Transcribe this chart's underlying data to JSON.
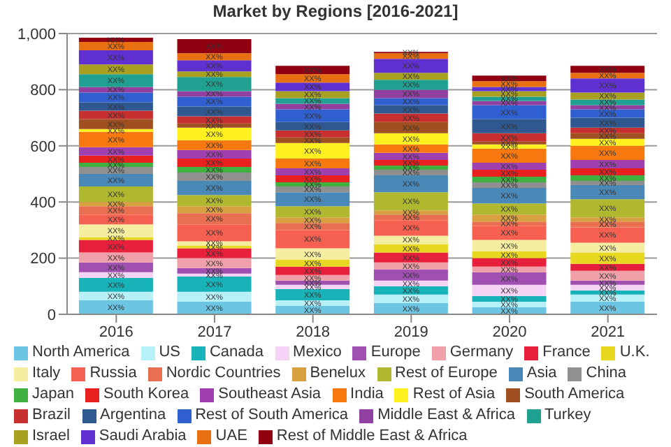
{
  "chart_data": {
    "type": "bar",
    "title": "Market by Regions [2016-2021]",
    "stacked": true,
    "grid": "y",
    "legend": "bottom",
    "data_labels": false,
    "categories": [
      "2016",
      "2017",
      "2018",
      "2019",
      "2020",
      "2021"
    ],
    "ylim": [
      0,
      1000
    ],
    "yticks": [
      0,
      200,
      400,
      600,
      800,
      {
        "value": 1000,
        "label": "1,000"
      }
    ],
    "series": [
      {
        "name": "North America",
        "color": "#6cc5e3",
        "values": [
          50,
          45,
          30,
          40,
          25,
          45
        ],
        "value_labels": [
          "XX%",
          "XX%",
          "XX%",
          "XX%",
          "XX%",
          "XX%"
        ]
      },
      {
        "name": "US",
        "color": "#b8f0f8",
        "values": [
          30,
          35,
          20,
          30,
          20,
          25
        ],
        "value_labels": [
          "XX%",
          "XX%",
          "XX%",
          "XX%",
          "XX%",
          "XX%"
        ]
      },
      {
        "name": "Canada",
        "color": "#17b3b8",
        "values": [
          50,
          55,
          40,
          30,
          20,
          15
        ],
        "value_labels": [
          "XX%",
          "XX%",
          "XX%",
          "XX%",
          "XX%",
          "XX%"
        ]
      },
      {
        "name": "Mexico",
        "color": "#f5d3f5",
        "values": [
          20,
          10,
          15,
          20,
          40,
          20
        ],
        "value_labels": [
          "XX%",
          "XX%",
          "XX%",
          "XX%",
          "XX%",
          "XX%"
        ]
      },
      {
        "name": "Europe",
        "color": "#a050b0",
        "values": [
          35,
          20,
          15,
          40,
          45,
          15
        ],
        "value_labels": [
          "XX%",
          "XX%",
          "XX%",
          "XX%",
          "XX%",
          "XX%"
        ]
      },
      {
        "name": "Germany",
        "color": "#f0a0a8",
        "values": [
          35,
          35,
          20,
          25,
          20,
          35
        ],
        "value_labels": [
          "XX%",
          "XX%",
          "XX%",
          "XX%",
          "XX%",
          "XX%"
        ]
      },
      {
        "name": "France",
        "color": "#e8203c",
        "values": [
          45,
          35,
          30,
          35,
          30,
          25
        ],
        "value_labels": [
          "XX%",
          "XX%",
          "XX%",
          "XX%",
          "XX%",
          "XX%"
        ]
      },
      {
        "name": "U.K.",
        "color": "#e8d820",
        "values": [
          10,
          10,
          25,
          30,
          25,
          40
        ],
        "value_labels": [
          "XX%",
          "XX%",
          "XX%",
          "XX%",
          "XX%",
          "XX%"
        ]
      },
      {
        "name": "Italy",
        "color": "#f5eea0",
        "values": [
          45,
          15,
          40,
          30,
          40,
          35
        ],
        "value_labels": [
          "XX%",
          "XX%",
          "XX%",
          "XX%",
          "XX%",
          "XX%"
        ]
      },
      {
        "name": "Russia",
        "color": "#f56050",
        "values": [
          35,
          60,
          65,
          55,
          50,
          55
        ],
        "value_labels": [
          "XX%",
          "XX%",
          "XX%",
          "XX%",
          "XX%",
          "XX%"
        ]
      },
      {
        "name": "Nordic Countries",
        "color": "#e87050",
        "values": [
          30,
          40,
          25,
          20,
          15,
          20
        ],
        "value_labels": [
          "XX%",
          "XX%",
          "XX%",
          "XX%",
          "XX%",
          "XX%"
        ]
      },
      {
        "name": "Benelux",
        "color": "#d8a040",
        "values": [
          15,
          25,
          20,
          15,
          25,
          15
        ],
        "value_labels": [
          "XX%",
          "XX%",
          "XX%",
          "XX%",
          "XX%",
          "XX%"
        ]
      },
      {
        "name": "Rest of Europe",
        "color": "#b0b830",
        "values": [
          55,
          40,
          40,
          65,
          40,
          65
        ],
        "value_labels": [
          "XX%",
          "XX%",
          "XX%",
          "XX%",
          "XX%",
          "XX%"
        ]
      },
      {
        "name": "Asia",
        "color": "#4a88b8",
        "values": [
          45,
          50,
          50,
          60,
          55,
          50
        ],
        "value_labels": [
          "XX%",
          "XX%",
          "XX%",
          "XX%",
          "XX%",
          "XX%"
        ]
      },
      {
        "name": "China",
        "color": "#909090",
        "values": [
          25,
          30,
          20,
          20,
          20,
          15
        ],
        "value_labels": [
          "XX%",
          "XX%",
          "XX%",
          "XX%",
          "XX%",
          "XX%"
        ]
      },
      {
        "name": "Japan",
        "color": "#40b040",
        "values": [
          15,
          20,
          15,
          15,
          20,
          20
        ],
        "value_labels": [
          "XX%",
          "XX%",
          "XX%",
          "XX%",
          "XX%",
          "XX%"
        ]
      },
      {
        "name": "South Korea",
        "color": "#e82020",
        "values": [
          25,
          30,
          25,
          20,
          25,
          25
        ],
        "value_labels": [
          "XX%",
          "XX%",
          "XX%",
          "XX%",
          "XX%",
          "XX%"
        ]
      },
      {
        "name": "Southeast Asia",
        "color": "#a040b0",
        "values": [
          30,
          30,
          25,
          25,
          25,
          30
        ],
        "value_labels": [
          "XX%",
          "XX%",
          "XX%",
          "XX%",
          "XX%",
          "XX%"
        ]
      },
      {
        "name": "India",
        "color": "#f87810",
        "values": [
          55,
          35,
          35,
          30,
          50,
          50
        ],
        "value_labels": [
          "XX%",
          "XX%",
          "XX%",
          "XX%",
          "XX%",
          "XX%"
        ]
      },
      {
        "name": "Rest of Asia",
        "color": "#fff020",
        "values": [
          10,
          45,
          55,
          40,
          15,
          25
        ],
        "value_labels": [
          "XX%",
          "XX%",
          "XX%",
          "XX%",
          "XX%",
          "XX%"
        ]
      },
      {
        "name": "South America",
        "color": "#a05020",
        "values": [
          35,
          15,
          20,
          40,
          10,
          20
        ],
        "value_labels": [
          "XX%",
          "XX%",
          "XX%",
          "XX%",
          "XX%",
          "XX%"
        ]
      },
      {
        "name": "Brazil",
        "color": "#c83030",
        "values": [
          30,
          25,
          25,
          30,
          30,
          20
        ],
        "value_labels": [
          "XX%",
          "XX%",
          "XX%",
          "XX%",
          "XX%",
          "XX%"
        ]
      },
      {
        "name": "Argentina",
        "color": "#305890",
        "values": [
          30,
          35,
          30,
          30,
          50,
          35
        ],
        "value_labels": [
          "XX%",
          "XX%",
          "XX%",
          "XX%",
          "XX%",
          "XX%"
        ]
      },
      {
        "name": "Rest of South America",
        "color": "#3060d0",
        "values": [
          35,
          35,
          45,
          25,
          50,
          30
        ],
        "value_labels": [
          "XX%",
          "XX%",
          "XX%",
          "XX%",
          "XX%",
          "XX%"
        ]
      },
      {
        "name": "Middle East & Africa",
        "color": "#9040a0",
        "values": [
          20,
          20,
          20,
          30,
          15,
          15
        ],
        "value_labels": [
          "XX%",
          "XX%",
          "XX%",
          "XX%",
          "XX%",
          "XX%"
        ]
      },
      {
        "name": "Turkey",
        "color": "#20a090",
        "values": [
          45,
          50,
          20,
          35,
          15,
          20
        ],
        "value_labels": [
          "XX%",
          "XX%",
          "XX%",
          "XX%",
          "XX%",
          "XX%"
        ]
      },
      {
        "name": "Israel",
        "color": "#a8a020",
        "values": [
          35,
          20,
          25,
          25,
          20,
          25
        ],
        "value_labels": [
          "XX%",
          "XX%",
          "XX%",
          "XX%",
          "XX%",
          "XX%"
        ]
      },
      {
        "name": "Saudi Arabia",
        "color": "#6030d0",
        "values": [
          50,
          40,
          30,
          50,
          15,
          50
        ],
        "value_labels": [
          "XX%",
          "XX%",
          "XX%",
          "XX%",
          "XX%",
          "XX%"
        ]
      },
      {
        "name": "UAE",
        "color": "#e87010",
        "values": [
          30,
          25,
          30,
          20,
          20,
          20
        ],
        "value_labels": [
          "XX%",
          "XX%",
          "XX%",
          "XX%",
          "XX%",
          "XX%"
        ]
      },
      {
        "name": "Rest of Middle East & Africa",
        "color": "#900010",
        "values": [
          15,
          50,
          30,
          5,
          20,
          25
        ],
        "value_labels": [
          "XX%",
          "XX%",
          "XX%",
          "XX%",
          "XX%",
          "XX%"
        ]
      }
    ]
  }
}
